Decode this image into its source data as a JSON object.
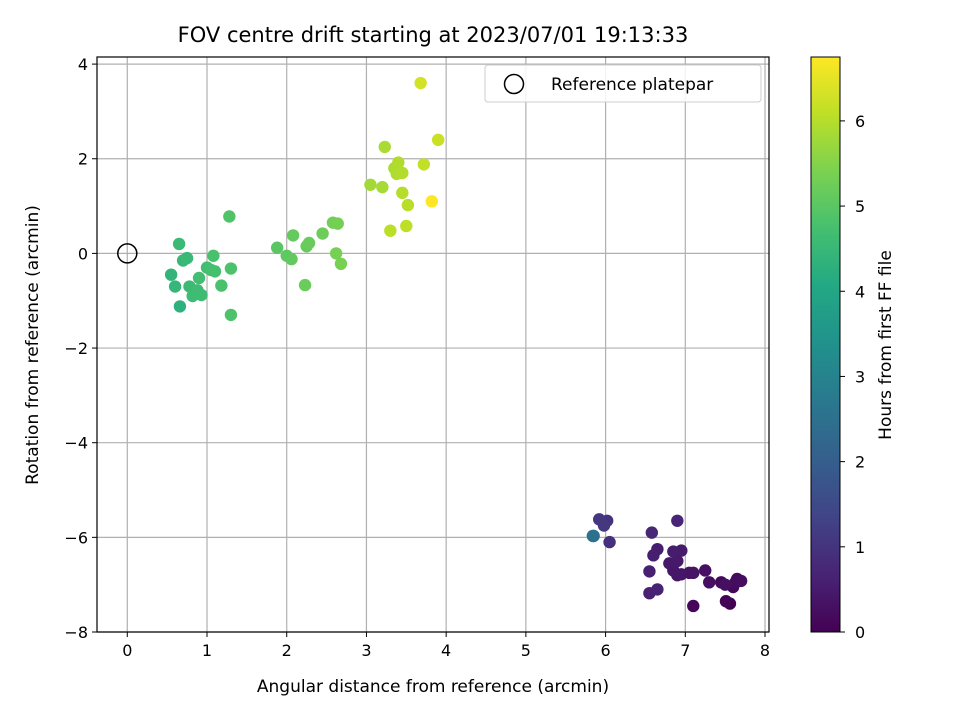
{
  "chart_data": {
    "type": "scatter",
    "title": "FOV centre drift starting at 2023/07/01 19:13:33",
    "xlabel": "Angular distance from reference (arcmin)",
    "ylabel": "Rotation from reference (arcmin)",
    "xlim": [
      -0.38,
      8.05
    ],
    "ylim": [
      -8.0,
      4.15
    ],
    "xticks": [
      0,
      1,
      2,
      3,
      4,
      5,
      6,
      7,
      8
    ],
    "yticks": [
      -8,
      -6,
      -4,
      -2,
      0,
      2,
      4
    ],
    "xtick_labels": [
      "0",
      "1",
      "2",
      "3",
      "4",
      "5",
      "6",
      "7",
      "8"
    ],
    "ytick_labels": [
      "−8",
      "−6",
      "−4",
      "−2",
      "0",
      "2",
      "4"
    ],
    "grid": true,
    "legend": {
      "location": "upper right",
      "entries": [
        {
          "label": "Reference platepar",
          "marker": "open-circle"
        }
      ]
    },
    "reference_point": {
      "x": 0,
      "y": 0
    },
    "colorbar": {
      "label": "Hours from first FF file",
      "colormap": "viridis",
      "range": [
        0,
        6.75
      ],
      "ticks": [
        0,
        1,
        2,
        3,
        4,
        5,
        6
      ],
      "tick_labels": [
        "0",
        "1",
        "2",
        "3",
        "4",
        "5",
        "6"
      ]
    },
    "series": [
      {
        "points": [
          {
            "x": 7.56,
            "y": -7.4,
            "c": 0.0
          },
          {
            "x": 7.51,
            "y": -7.35,
            "c": 0.05
          },
          {
            "x": 7.1,
            "y": -7.45,
            "c": 0.1
          },
          {
            "x": 7.6,
            "y": -7.05,
            "c": 0.12
          },
          {
            "x": 7.45,
            "y": -6.95,
            "c": 0.15
          },
          {
            "x": 7.65,
            "y": -6.88,
            "c": 0.18
          },
          {
            "x": 7.63,
            "y": -6.95,
            "c": 0.2
          },
          {
            "x": 7.7,
            "y": -6.92,
            "c": 0.22
          },
          {
            "x": 7.3,
            "y": -6.95,
            "c": 0.25
          },
          {
            "x": 7.5,
            "y": -7.0,
            "c": 0.28
          },
          {
            "x": 7.25,
            "y": -6.7,
            "c": 0.3
          },
          {
            "x": 7.05,
            "y": -6.75,
            "c": 0.33
          },
          {
            "x": 7.1,
            "y": -6.75,
            "c": 0.35
          },
          {
            "x": 6.95,
            "y": -6.78,
            "c": 0.38
          },
          {
            "x": 6.9,
            "y": -6.8,
            "c": 0.4
          },
          {
            "x": 6.85,
            "y": -6.7,
            "c": 0.42
          },
          {
            "x": 6.8,
            "y": -6.55,
            "c": 0.45
          },
          {
            "x": 6.9,
            "y": -6.5,
            "c": 0.47
          },
          {
            "x": 6.95,
            "y": -6.28,
            "c": 0.5
          },
          {
            "x": 6.85,
            "y": -6.3,
            "c": 0.52
          },
          {
            "x": 6.65,
            "y": -6.25,
            "c": 0.55
          },
          {
            "x": 6.6,
            "y": -6.38,
            "c": 0.57
          },
          {
            "x": 6.55,
            "y": -6.72,
            "c": 0.6
          },
          {
            "x": 6.55,
            "y": -7.18,
            "c": 0.62
          },
          {
            "x": 6.65,
            "y": -7.1,
            "c": 0.65
          },
          {
            "x": 6.9,
            "y": -5.65,
            "c": 0.7
          },
          {
            "x": 6.58,
            "y": -5.9,
            "c": 0.75
          },
          {
            "x": 6.05,
            "y": -6.1,
            "c": 0.9
          },
          {
            "x": 6.02,
            "y": -5.65,
            "c": 1.0
          },
          {
            "x": 5.92,
            "y": -5.62,
            "c": 1.05
          },
          {
            "x": 5.98,
            "y": -5.75,
            "c": 1.1
          },
          {
            "x": 5.85,
            "y": -5.97,
            "c": 2.3
          },
          {
            "x": 5.84,
            "y": -5.97,
            "c": 2.5
          },
          {
            "x": 0.66,
            "y": -1.12,
            "c": 4.3
          },
          {
            "x": 0.55,
            "y": -0.45,
            "c": 4.4
          },
          {
            "x": 0.6,
            "y": -0.7,
            "c": 4.45
          },
          {
            "x": 0.7,
            "y": -0.15,
            "c": 4.5
          },
          {
            "x": 0.75,
            "y": -0.1,
            "c": 4.52
          },
          {
            "x": 0.65,
            "y": 0.2,
            "c": 4.55
          },
          {
            "x": 0.78,
            "y": -0.7,
            "c": 4.57
          },
          {
            "x": 0.82,
            "y": -0.9,
            "c": 4.6
          },
          {
            "x": 0.88,
            "y": -0.78,
            "c": 4.62
          },
          {
            "x": 0.93,
            "y": -0.88,
            "c": 4.65
          },
          {
            "x": 0.9,
            "y": -0.52,
            "c": 4.68
          },
          {
            "x": 1.0,
            "y": -0.3,
            "c": 4.7
          },
          {
            "x": 1.05,
            "y": -0.35,
            "c": 4.72
          },
          {
            "x": 1.1,
            "y": -0.38,
            "c": 4.75
          },
          {
            "x": 1.08,
            "y": -0.05,
            "c": 4.78
          },
          {
            "x": 1.18,
            "y": -0.68,
            "c": 4.8
          },
          {
            "x": 1.3,
            "y": -0.32,
            "c": 4.82
          },
          {
            "x": 1.3,
            "y": -1.3,
            "c": 4.85
          },
          {
            "x": 1.28,
            "y": 0.78,
            "c": 4.88
          },
          {
            "x": 1.88,
            "y": 0.12,
            "c": 5.0
          },
          {
            "x": 2.0,
            "y": -0.05,
            "c": 5.05
          },
          {
            "x": 2.06,
            "y": -0.12,
            "c": 5.1
          },
          {
            "x": 2.08,
            "y": 0.38,
            "c": 5.12
          },
          {
            "x": 2.25,
            "y": 0.15,
            "c": 5.15
          },
          {
            "x": 2.28,
            "y": 0.22,
            "c": 5.18
          },
          {
            "x": 2.23,
            "y": -0.67,
            "c": 5.2
          },
          {
            "x": 2.45,
            "y": 0.42,
            "c": 5.25
          },
          {
            "x": 2.58,
            "y": 0.65,
            "c": 5.3
          },
          {
            "x": 2.64,
            "y": 0.63,
            "c": 5.33
          },
          {
            "x": 2.62,
            "y": 0.0,
            "c": 5.35
          },
          {
            "x": 2.68,
            "y": -0.22,
            "c": 5.38
          },
          {
            "x": 3.05,
            "y": 1.45,
            "c": 5.8
          },
          {
            "x": 3.2,
            "y": 1.4,
            "c": 5.85
          },
          {
            "x": 3.23,
            "y": 2.25,
            "c": 5.88
          },
          {
            "x": 3.35,
            "y": 1.8,
            "c": 5.9
          },
          {
            "x": 3.38,
            "y": 1.68,
            "c": 5.92
          },
          {
            "x": 3.4,
            "y": 1.92,
            "c": 5.95
          },
          {
            "x": 3.45,
            "y": 1.7,
            "c": 5.97
          },
          {
            "x": 3.45,
            "y": 1.28,
            "c": 6.0
          },
          {
            "x": 3.52,
            "y": 1.02,
            "c": 6.02
          },
          {
            "x": 3.3,
            "y": 0.48,
            "c": 6.05
          },
          {
            "x": 3.5,
            "y": 0.58,
            "c": 6.08
          },
          {
            "x": 3.72,
            "y": 1.88,
            "c": 6.12
          },
          {
            "x": 3.9,
            "y": 2.4,
            "c": 6.2
          },
          {
            "x": 3.68,
            "y": 3.6,
            "c": 6.3
          },
          {
            "x": 3.82,
            "y": 1.1,
            "c": 6.75
          }
        ]
      }
    ]
  }
}
